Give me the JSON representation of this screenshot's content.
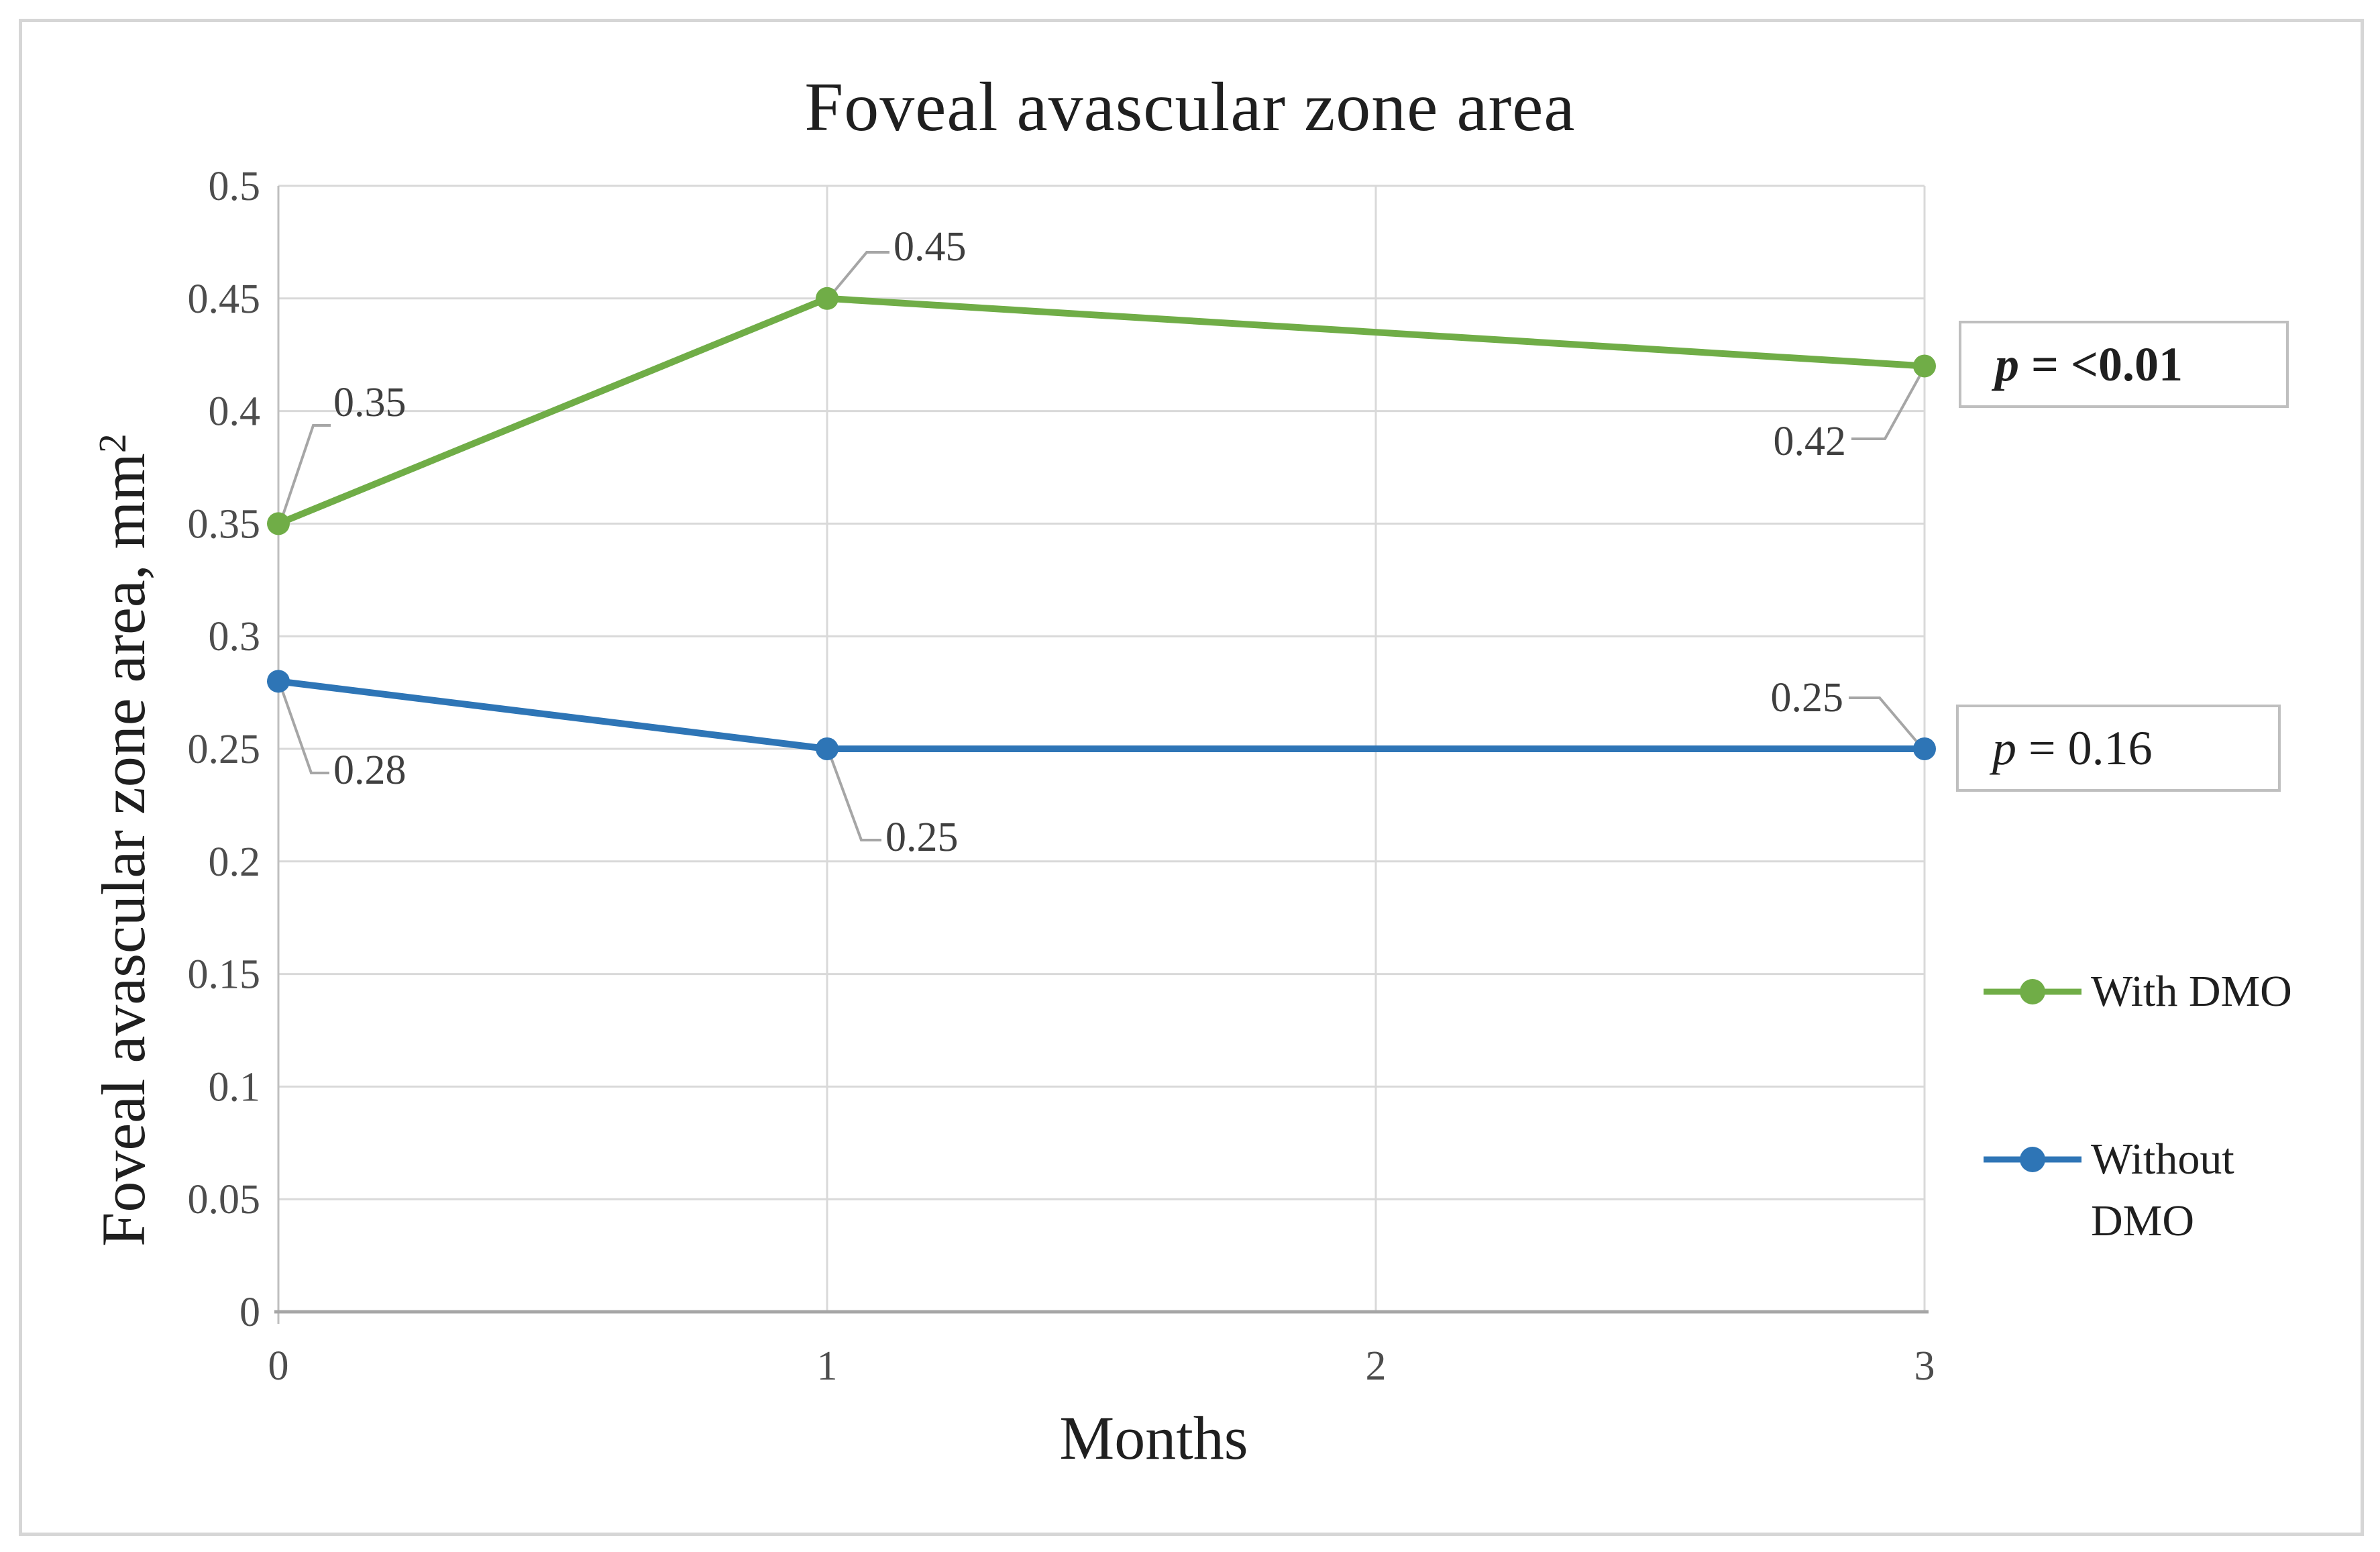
{
  "chart": {
    "title": "Foveal avascular zone area",
    "x_axis_title": "Months",
    "y_axis_title": "Foveal avascular zone area, mm",
    "y_axis_title_superscript": "2"
  },
  "chart_data": {
    "type": "line",
    "title": "Foveal avascular zone area",
    "xlabel": "Months",
    "ylabel": "Foveal avascular zone area, mm^2",
    "xlim": [
      0,
      3
    ],
    "ylim": [
      0,
      0.5
    ],
    "x_ticks": [
      0,
      1,
      2,
      3
    ],
    "y_ticks": [
      0,
      0.05,
      0.1,
      0.15,
      0.2,
      0.25,
      0.3,
      0.35,
      0.4,
      0.45,
      0.5
    ],
    "grid": true,
    "legend_position": "right",
    "series": [
      {
        "name": "With DMO",
        "color": "#70AD47",
        "x": [
          0,
          1,
          3
        ],
        "values": [
          0.35,
          0.45,
          0.42
        ],
        "data_labels": [
          "0.35",
          "0.45",
          "0.42"
        ],
        "p_value": "p = <0.01"
      },
      {
        "name": "Without DMO",
        "color": "#2E75B6",
        "x": [
          0,
          1,
          3
        ],
        "values": [
          0.28,
          0.25,
          0.25
        ],
        "data_labels": [
          "0.28",
          "0.25",
          "0.25"
        ],
        "p_value": "p = 0.16"
      }
    ]
  },
  "p_annotations": [
    {
      "symbol": "p",
      "value": " = <0.01"
    },
    {
      "symbol": "p",
      "value": " = 0.16"
    }
  ],
  "legend": {
    "items": [
      {
        "label": "With DMO",
        "color": "#70AD47"
      },
      {
        "label": "Without DMO",
        "color": "#2E75B6"
      }
    ]
  },
  "colors": {
    "grid": "#D9D9D9",
    "y_axis_line": "#BFBFBF",
    "x_axis_line": "#A6A6A6",
    "leader_line": "#A6A6A6",
    "tick_text": "#4d4d4d",
    "data_label_text": "#3f3f3f",
    "text": "#1f1f1f",
    "box_border": "#BFBFBF",
    "frame_border": "#D6D6D6"
  }
}
